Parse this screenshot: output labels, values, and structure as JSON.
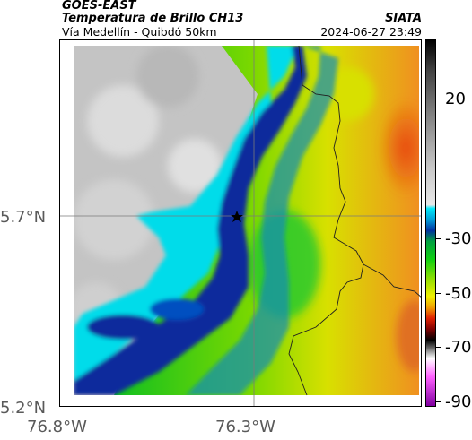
{
  "header": {
    "satellite": "GOES-EAST",
    "product": "Temperatura de Brillo CH13",
    "site": "Vía Medellín - Quibdó 50km",
    "organization": "SIATA",
    "timestamp": "2024-06-27 23:49"
  },
  "axes": {
    "latitudes": [
      "5.7°N",
      "5.2°N"
    ],
    "longitudes": [
      "76.8°W",
      "76.3°W"
    ]
  },
  "colorbar": {
    "ticks": [
      "20",
      "-30",
      "-50",
      "-70",
      "-90"
    ]
  },
  "marker": {
    "icon": "star-icon"
  },
  "colors": {
    "warm": "#c8c8c8",
    "cyan": "#00e0f0",
    "blue": "#0a2a9a",
    "green": "#10c020",
    "yellow": "#d8e000",
    "orange": "#f08020"
  }
}
